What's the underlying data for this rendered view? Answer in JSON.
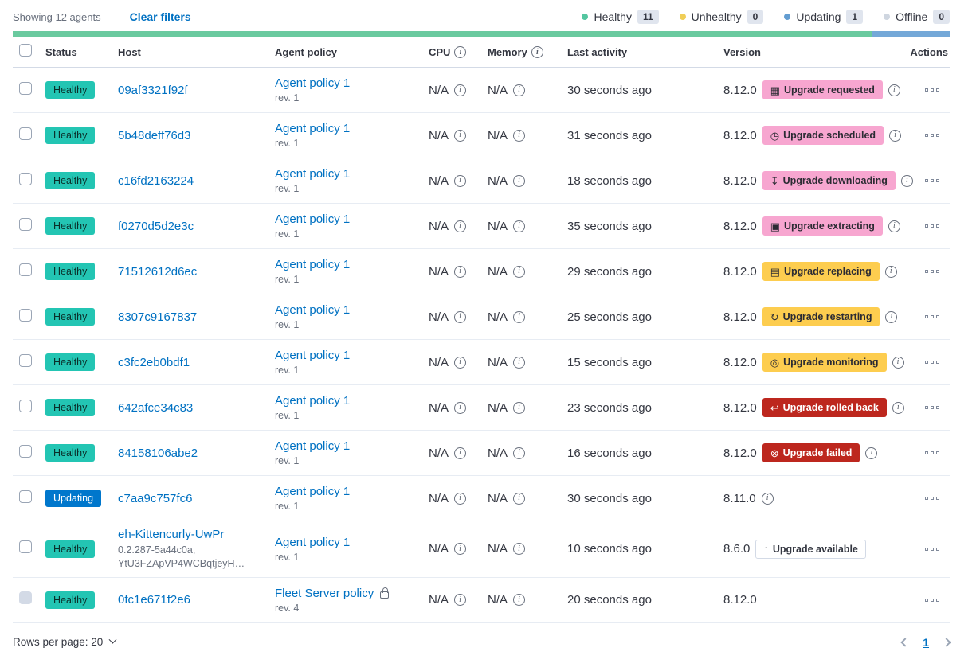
{
  "toolbar": {
    "showing_text": "Showing 12 agents",
    "clear_filters_label": "Clear filters",
    "legend": [
      {
        "label": "Healthy",
        "count": "11",
        "color": "#54c6a0"
      },
      {
        "label": "Unhealthy",
        "count": "0",
        "color": "#f0ce57"
      },
      {
        "label": "Updating",
        "count": "1",
        "color": "#639dd1"
      },
      {
        "label": "Offline",
        "count": "0",
        "color": "#cfd6e0"
      }
    ]
  },
  "health_bar": {
    "segments": [
      {
        "name": "healthy",
        "color": "#6aca9f",
        "fraction": 0.9167
      },
      {
        "name": "updating",
        "color": "#74a8d8",
        "fraction": 0.0833
      }
    ]
  },
  "colors": {
    "status": {
      "Healthy": {
        "bg": "#23c5b3",
        "fg": "#0a2e29"
      },
      "Updating": {
        "bg": "#0077cc",
        "fg": "#ffffff"
      }
    },
    "badge": {
      "pink": {
        "bg": "#f7a6d0",
        "fg": "#2b2b33",
        "border": "#f7a6d0"
      },
      "yellow": {
        "bg": "#fdcd4f",
        "fg": "#2b2b33",
        "border": "#fdcd4f"
      },
      "red": {
        "bg": "#bd271e",
        "fg": "#ffffff",
        "border": "#bd271e"
      },
      "outline": {
        "bg": "#ffffff",
        "fg": "#343741",
        "border": "#d3dae6"
      }
    }
  },
  "icons": {
    "calendar": "▦",
    "clock": "◷",
    "download": "↧",
    "package": "▣",
    "document": "▤",
    "refresh": "↻",
    "inspect": "◎",
    "undo": "↩",
    "cross": "⊗",
    "arrow-up": "↑"
  },
  "table": {
    "headers": {
      "status": "Status",
      "host": "Host",
      "policy": "Agent policy",
      "cpu": "CPU",
      "memory": "Memory",
      "activity": "Last activity",
      "version": "Version",
      "actions": "Actions"
    },
    "rows": [
      {
        "status": "Healthy",
        "host": "09af3321f92f",
        "host_sub": "",
        "policy": "Agent policy 1",
        "rev": "rev. 1",
        "locked": false,
        "cpu": "N/A",
        "memory": "N/A",
        "activity": "30 seconds ago",
        "version": "8.12.0",
        "badge": {
          "label": "Upgrade requested",
          "variant": "pink",
          "icon": "calendar"
        },
        "version_info": true,
        "checkbox_disabled": false
      },
      {
        "status": "Healthy",
        "host": "5b48deff76d3",
        "host_sub": "",
        "policy": "Agent policy 1",
        "rev": "rev. 1",
        "locked": false,
        "cpu": "N/A",
        "memory": "N/A",
        "activity": "31 seconds ago",
        "version": "8.12.0",
        "badge": {
          "label": "Upgrade scheduled",
          "variant": "pink",
          "icon": "clock"
        },
        "version_info": true,
        "checkbox_disabled": false
      },
      {
        "status": "Healthy",
        "host": "c16fd2163224",
        "host_sub": "",
        "policy": "Agent policy 1",
        "rev": "rev. 1",
        "locked": false,
        "cpu": "N/A",
        "memory": "N/A",
        "activity": "18 seconds ago",
        "version": "8.12.0",
        "badge": {
          "label": "Upgrade downloading",
          "variant": "pink",
          "icon": "download"
        },
        "version_info": true,
        "checkbox_disabled": false
      },
      {
        "status": "Healthy",
        "host": "f0270d5d2e3c",
        "host_sub": "",
        "policy": "Agent policy 1",
        "rev": "rev. 1",
        "locked": false,
        "cpu": "N/A",
        "memory": "N/A",
        "activity": "35 seconds ago",
        "version": "8.12.0",
        "badge": {
          "label": "Upgrade extracting",
          "variant": "pink",
          "icon": "package"
        },
        "version_info": true,
        "checkbox_disabled": false
      },
      {
        "status": "Healthy",
        "host": "71512612d6ec",
        "host_sub": "",
        "policy": "Agent policy 1",
        "rev": "rev. 1",
        "locked": false,
        "cpu": "N/A",
        "memory": "N/A",
        "activity": "29 seconds ago",
        "version": "8.12.0",
        "badge": {
          "label": "Upgrade replacing",
          "variant": "yellow",
          "icon": "document"
        },
        "version_info": true,
        "checkbox_disabled": false
      },
      {
        "status": "Healthy",
        "host": "8307c9167837",
        "host_sub": "",
        "policy": "Agent policy 1",
        "rev": "rev. 1",
        "locked": false,
        "cpu": "N/A",
        "memory": "N/A",
        "activity": "25 seconds ago",
        "version": "8.12.0",
        "badge": {
          "label": "Upgrade restarting",
          "variant": "yellow",
          "icon": "refresh"
        },
        "version_info": true,
        "checkbox_disabled": false
      },
      {
        "status": "Healthy",
        "host": "c3fc2eb0bdf1",
        "host_sub": "",
        "policy": "Agent policy 1",
        "rev": "rev. 1",
        "locked": false,
        "cpu": "N/A",
        "memory": "N/A",
        "activity": "15 seconds ago",
        "version": "8.12.0",
        "badge": {
          "label": "Upgrade monitoring",
          "variant": "yellow",
          "icon": "inspect"
        },
        "version_info": true,
        "checkbox_disabled": false
      },
      {
        "status": "Healthy",
        "host": "642afce34c83",
        "host_sub": "",
        "policy": "Agent policy 1",
        "rev": "rev. 1",
        "locked": false,
        "cpu": "N/A",
        "memory": "N/A",
        "activity": "23 seconds ago",
        "version": "8.12.0",
        "badge": {
          "label": "Upgrade rolled back",
          "variant": "red",
          "icon": "undo"
        },
        "version_info": true,
        "checkbox_disabled": false
      },
      {
        "status": "Healthy",
        "host": "84158106abe2",
        "host_sub": "",
        "policy": "Agent policy 1",
        "rev": "rev. 1",
        "locked": false,
        "cpu": "N/A",
        "memory": "N/A",
        "activity": "16 seconds ago",
        "version": "8.12.0",
        "badge": {
          "label": "Upgrade failed",
          "variant": "red",
          "icon": "cross"
        },
        "version_info": true,
        "checkbox_disabled": false
      },
      {
        "status": "Updating",
        "host": "c7aa9c757fc6",
        "host_sub": "",
        "policy": "Agent policy 1",
        "rev": "rev. 1",
        "locked": false,
        "cpu": "N/A",
        "memory": "N/A",
        "activity": "30 seconds ago",
        "version": "8.11.0",
        "badge": null,
        "version_info": true,
        "checkbox_disabled": false
      },
      {
        "status": "Healthy",
        "host": "eh-Kittencurly-UwPr",
        "host_sub": "0.2.287-5a44c0a,\nYtU3FZApVP4WCBqtjeyH…",
        "policy": "Agent policy 1",
        "rev": "rev. 1",
        "locked": false,
        "cpu": "N/A",
        "memory": "N/A",
        "activity": "10 seconds ago",
        "version": "8.6.0",
        "badge": {
          "label": "Upgrade available",
          "variant": "outline",
          "icon": "arrow-up"
        },
        "version_info": false,
        "checkbox_disabled": false
      },
      {
        "status": "Healthy",
        "host": "0fc1e671f2e6",
        "host_sub": "",
        "policy": "Fleet Server policy",
        "rev": "rev. 4",
        "locked": true,
        "cpu": "N/A",
        "memory": "N/A",
        "activity": "20 seconds ago",
        "version": "8.12.0",
        "badge": null,
        "version_info": false,
        "checkbox_disabled": true
      }
    ]
  },
  "footer": {
    "rows_per_page_label": "Rows per page: 20",
    "current_page": "1"
  }
}
